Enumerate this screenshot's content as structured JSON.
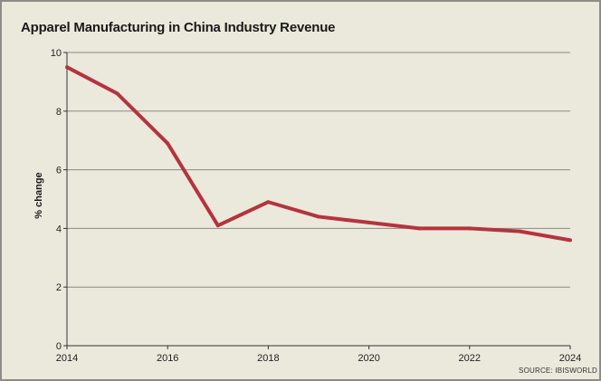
{
  "chart_data": {
    "type": "line",
    "title": "Apparel Manufacturing in China Industry Revenue",
    "xlabel": "",
    "ylabel": "% change",
    "source": "SOURCE: IBISWORLD",
    "x": [
      2014,
      2015,
      2016,
      2017,
      2018,
      2019,
      2020,
      2021,
      2022,
      2023,
      2024
    ],
    "series": [
      {
        "values": [
          9.5,
          8.6,
          6.9,
          4.1,
          4.9,
          4.4,
          4.2,
          4.0,
          4.0,
          3.9,
          3.6
        ]
      }
    ],
    "xlim": [
      2014,
      2024
    ],
    "ylim": [
      0,
      10
    ],
    "xticks": [
      2014,
      2016,
      2018,
      2020,
      2022,
      2024
    ],
    "yticks": [
      0,
      2,
      4,
      6,
      8,
      10
    ],
    "grid": true,
    "legend": "none",
    "colors": {
      "line": "#b5333d",
      "background": "#ebe9dc",
      "grid": "#8a8a84",
      "frame": "#8e8c86"
    }
  }
}
